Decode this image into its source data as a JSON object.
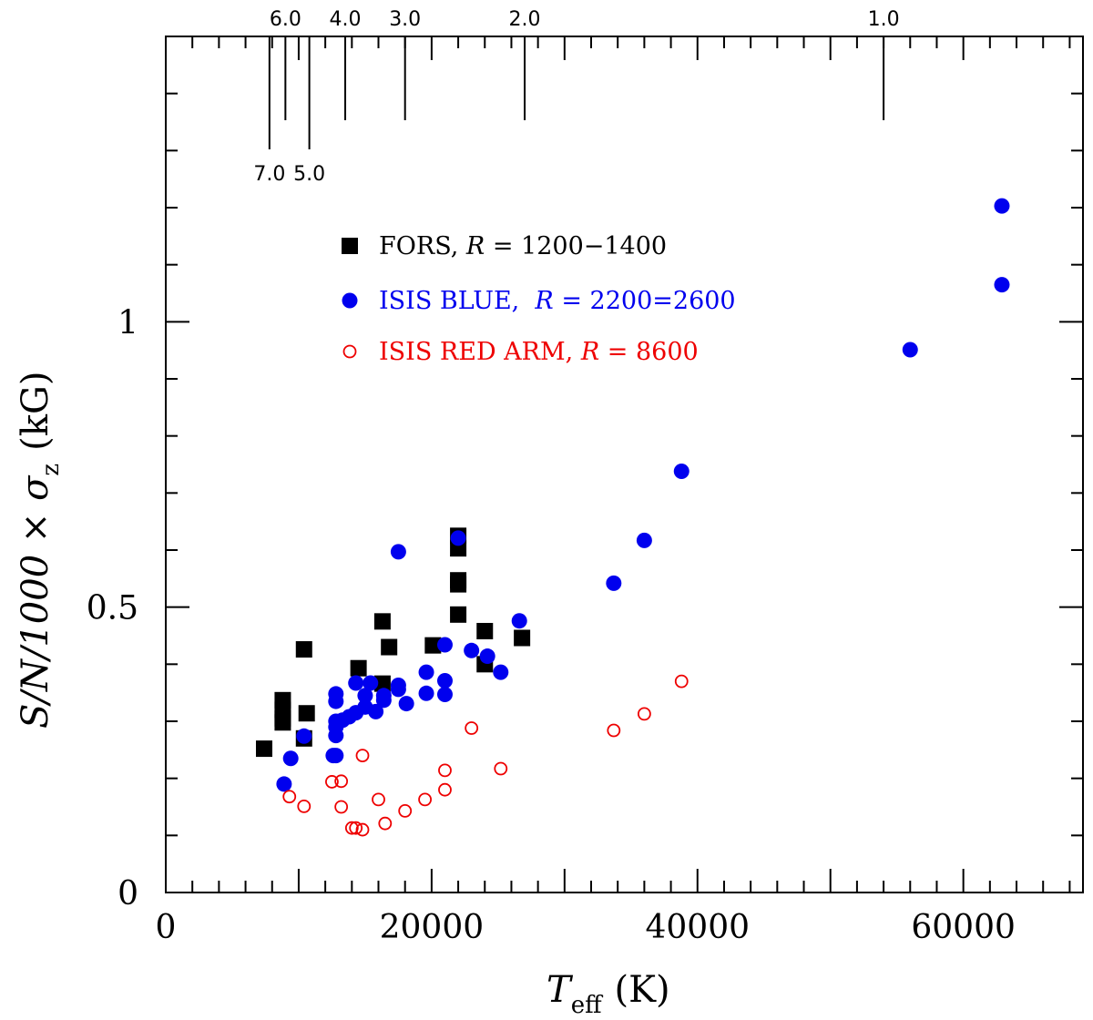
{
  "chart_data": {
    "type": "scatter",
    "title": "",
    "xlabel": {
      "main": "T",
      "sub": "eff",
      "unit": "(K)"
    },
    "ylabel": {
      "main": "S/N/1000 × σ",
      "sub": "z",
      "unit": "(kG)"
    },
    "xlim": [
      0,
      69000
    ],
    "ylim": [
      0,
      1.5
    ],
    "x_ticks": [
      0,
      20000,
      40000,
      60000
    ],
    "x_tick_labels": [
      "0",
      "20000",
      "40000",
      "60000"
    ],
    "y_ticks": [
      0,
      0.5,
      1
    ],
    "y_tick_labels": [
      "0",
      "0.5",
      "1"
    ],
    "top_axis_marks": [
      {
        "label": "6.0",
        "t": 9000,
        "long": false
      },
      {
        "label": "4.0",
        "t": 13500,
        "long": false
      },
      {
        "label": "3.0",
        "t": 18000,
        "long": false
      },
      {
        "label": "2.0",
        "t": 27000,
        "long": false
      },
      {
        "label": "1.0",
        "t": 54000,
        "long": false
      },
      {
        "label": "7.0",
        "t": 7800,
        "long": true
      },
      {
        "label": "5.0",
        "t": 10800,
        "long": true
      }
    ],
    "legend": [
      {
        "label_prefix": "FORS, ",
        "label_R": "R",
        "label_suffix": " = 1200−1400",
        "color": "#000000",
        "marker": "filled-square"
      },
      {
        "label_prefix": "ISIS BLUE,  ",
        "label_R": "R",
        "label_suffix": " = 2200=2600",
        "color": "#0000ee",
        "marker": "filled-circle"
      },
      {
        "label_prefix": "ISIS RED ARM, ",
        "label_R": "R",
        "label_suffix": " = 8600",
        "color": "#ee0000",
        "marker": "open-circle"
      }
    ],
    "series": [
      {
        "name": "FORS, R = 1200-1400",
        "color": "#000000",
        "marker": "filled-square",
        "points": [
          [
            7400,
            0.252
          ],
          [
            8800,
            0.337
          ],
          [
            8800,
            0.32
          ],
          [
            8800,
            0.305
          ],
          [
            8800,
            0.298
          ],
          [
            10400,
            0.426
          ],
          [
            10600,
            0.314
          ],
          [
            10400,
            0.27
          ],
          [
            14500,
            0.393
          ],
          [
            16300,
            0.475
          ],
          [
            16300,
            0.366
          ],
          [
            16800,
            0.43
          ],
          [
            20100,
            0.433
          ],
          [
            22000,
            0.625
          ],
          [
            22000,
            0.603
          ],
          [
            22000,
            0.547
          ],
          [
            22000,
            0.54
          ],
          [
            22000,
            0.487
          ],
          [
            24000,
            0.458
          ],
          [
            24000,
            0.4
          ],
          [
            26800,
            0.446
          ]
        ]
      },
      {
        "name": "ISIS BLUE, R = 2200-2600",
        "color": "#0000ee",
        "marker": "filled-circle",
        "points": [
          [
            8900,
            0.19
          ],
          [
            9400,
            0.235
          ],
          [
            10400,
            0.274
          ],
          [
            12600,
            0.24
          ],
          [
            12800,
            0.24
          ],
          [
            12800,
            0.275
          ],
          [
            12800,
            0.29
          ],
          [
            12800,
            0.3
          ],
          [
            12800,
            0.335
          ],
          [
            12800,
            0.348
          ],
          [
            13300,
            0.302
          ],
          [
            13800,
            0.308
          ],
          [
            14300,
            0.367
          ],
          [
            14300,
            0.315
          ],
          [
            15000,
            0.325
          ],
          [
            15000,
            0.345
          ],
          [
            15400,
            0.367
          ],
          [
            15800,
            0.317
          ],
          [
            16400,
            0.337
          ],
          [
            16400,
            0.345
          ],
          [
            17500,
            0.597
          ],
          [
            17500,
            0.363
          ],
          [
            17500,
            0.356
          ],
          [
            18100,
            0.331
          ],
          [
            19600,
            0.386
          ],
          [
            19600,
            0.349
          ],
          [
            21000,
            0.434
          ],
          [
            21000,
            0.371
          ],
          [
            21000,
            0.347
          ],
          [
            22000,
            0.621
          ],
          [
            23000,
            0.424
          ],
          [
            24200,
            0.414
          ],
          [
            25200,
            0.386
          ],
          [
            26600,
            0.476
          ],
          [
            33700,
            0.542
          ],
          [
            36000,
            0.617
          ],
          [
            38800,
            0.738
          ],
          [
            56000,
            0.951
          ],
          [
            62900,
            1.203
          ],
          [
            62900,
            1.065
          ]
        ]
      },
      {
        "name": "ISIS RED ARM, R = 8600",
        "color": "#ee0000",
        "marker": "open-circle",
        "points": [
          [
            9300,
            0.168
          ],
          [
            10400,
            0.151
          ],
          [
            12500,
            0.194
          ],
          [
            13200,
            0.195
          ],
          [
            13200,
            0.15
          ],
          [
            14000,
            0.113
          ],
          [
            14300,
            0.113
          ],
          [
            14800,
            0.24
          ],
          [
            14800,
            0.11
          ],
          [
            16000,
            0.163
          ],
          [
            16500,
            0.121
          ],
          [
            18000,
            0.143
          ],
          [
            19500,
            0.163
          ],
          [
            21000,
            0.214
          ],
          [
            21000,
            0.18
          ],
          [
            23000,
            0.288
          ],
          [
            25200,
            0.217
          ],
          [
            33700,
            0.284
          ],
          [
            36000,
            0.313
          ],
          [
            38800,
            0.37
          ]
        ]
      }
    ]
  }
}
